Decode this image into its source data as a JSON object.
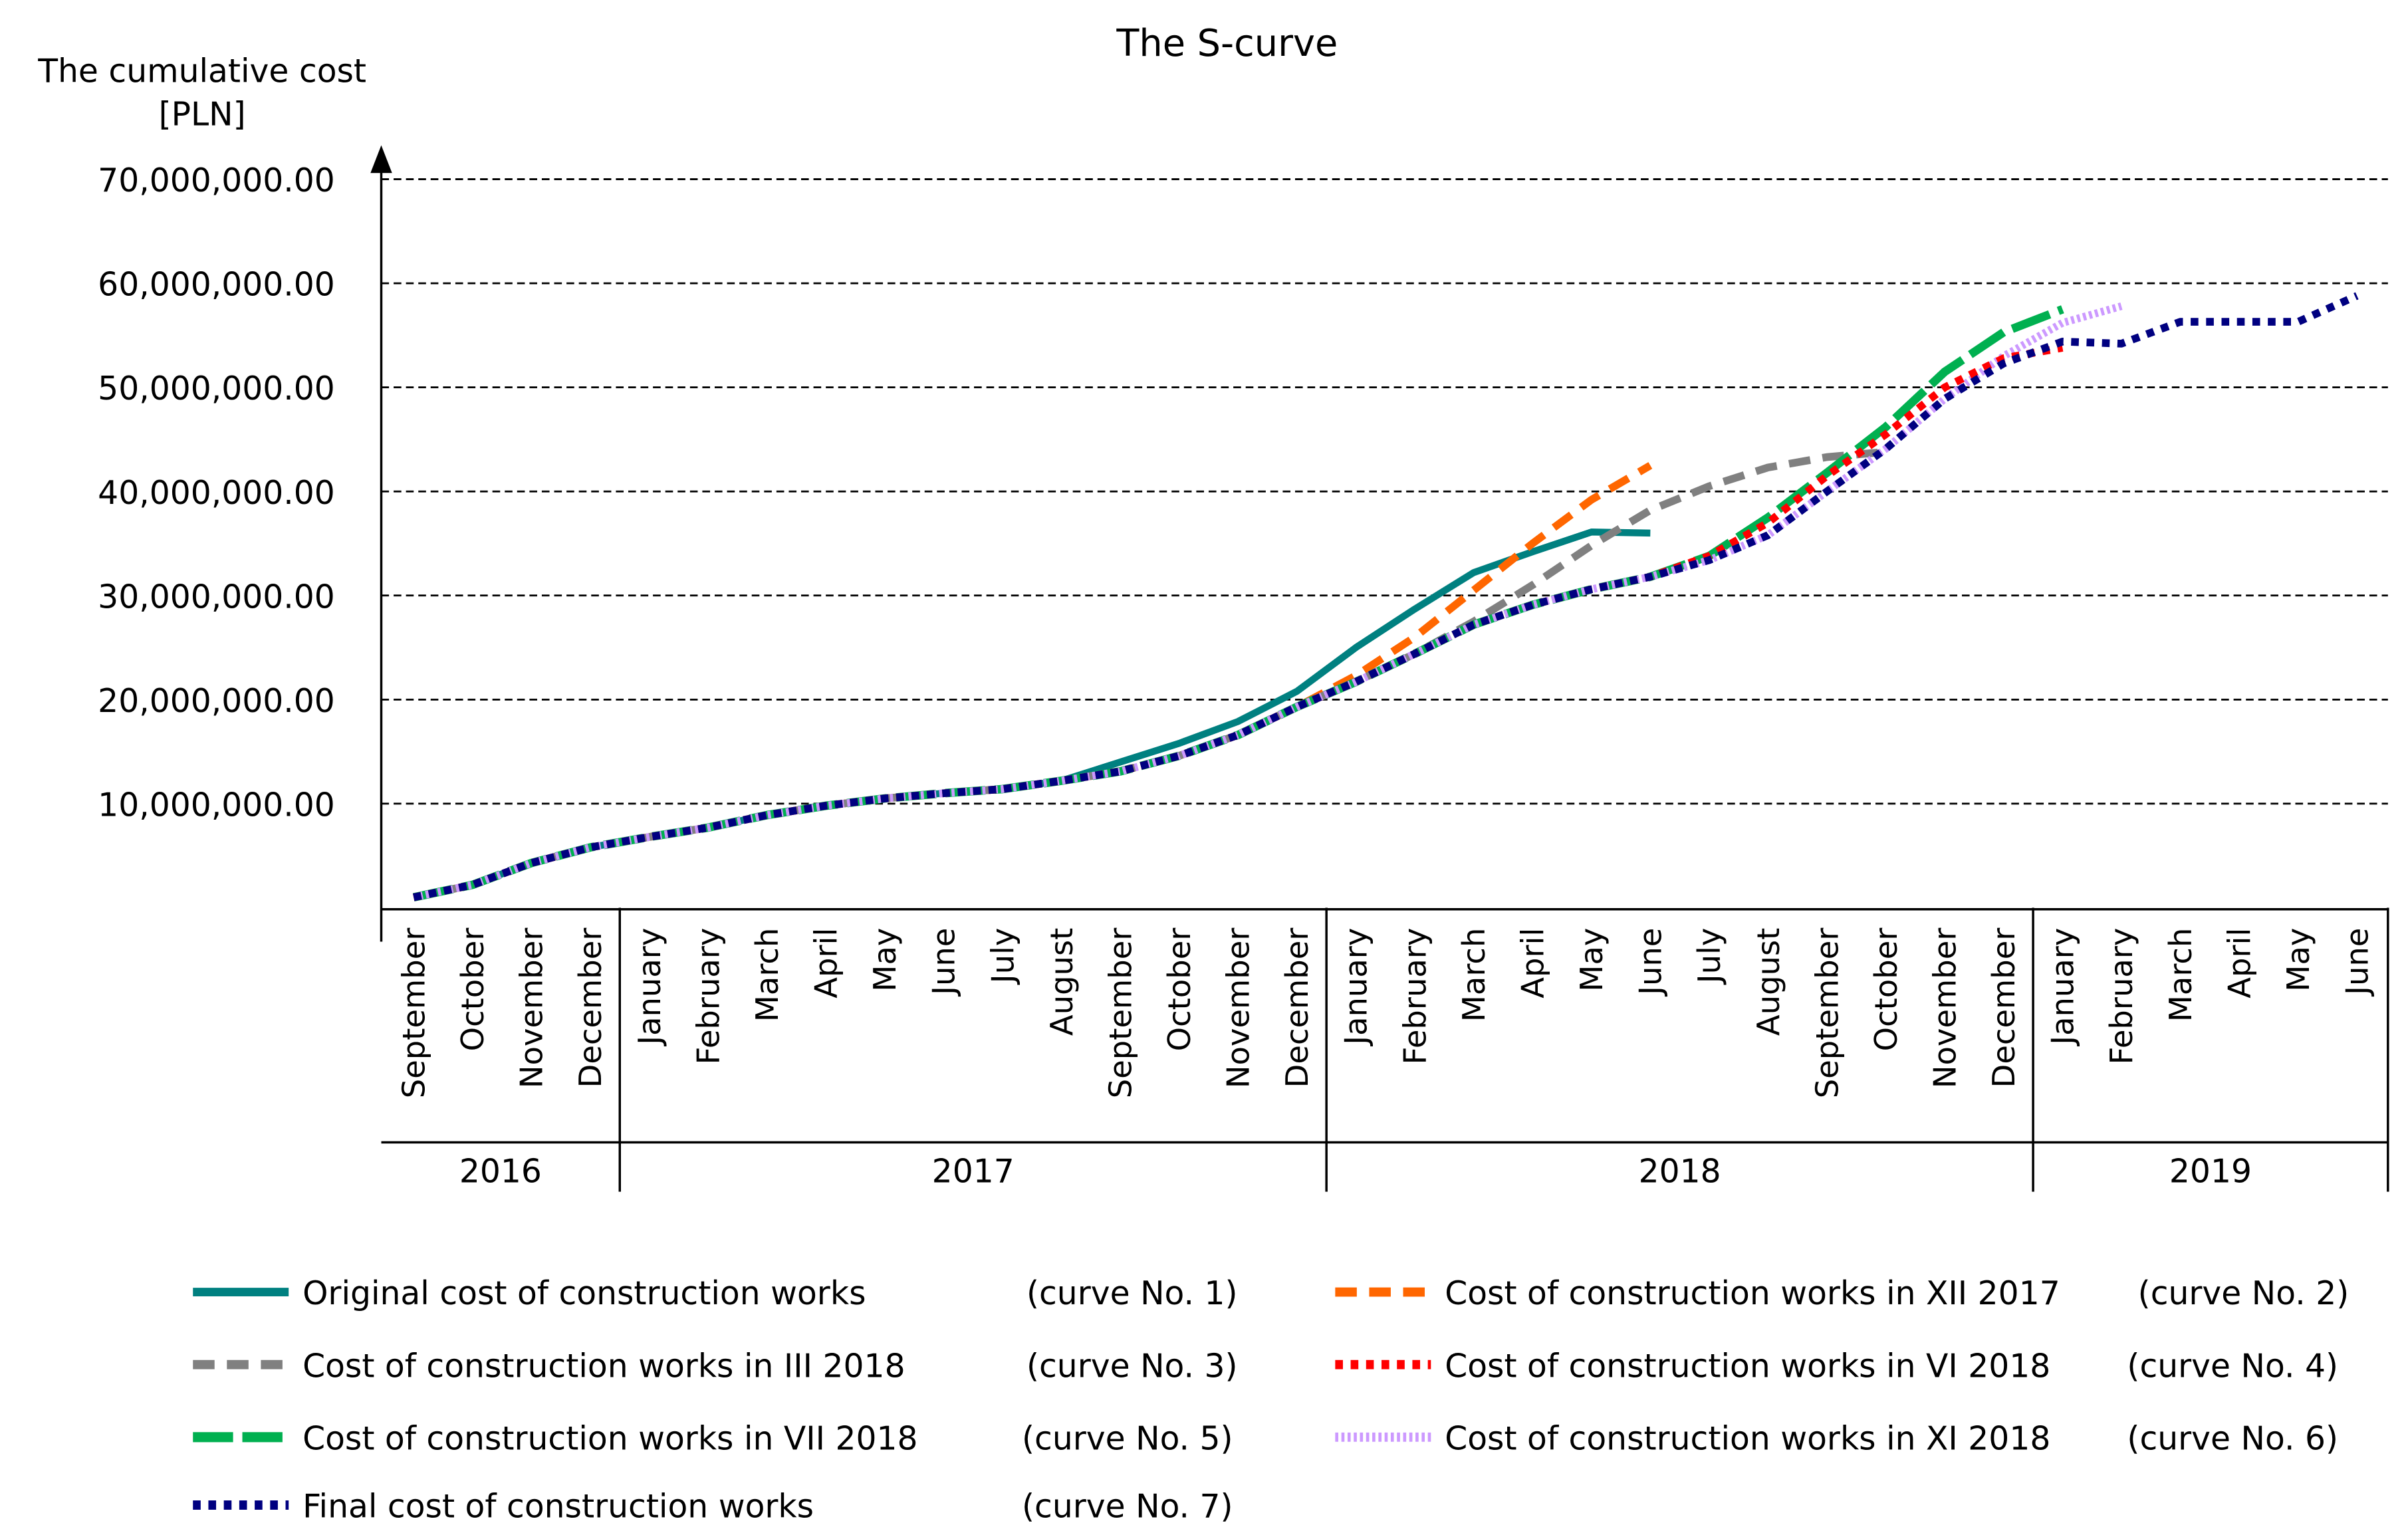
{
  "chart_data": {
    "type": "line",
    "title": "The S-curve",
    "ylabel": [
      "The cumulative cost",
      "[PLN]"
    ],
    "xlabel": "",
    "ylim": [
      0,
      70000000
    ],
    "yticks": [
      10000000,
      20000000,
      30000000,
      40000000,
      50000000,
      60000000,
      70000000
    ],
    "ytick_labels": [
      "10,000,000.00",
      "20,000,000.00",
      "30,000,000.00",
      "40,000,000.00",
      "50,000,000.00",
      "60,000,000.00",
      "70,000,000.00"
    ],
    "grid": "horizontal dashed",
    "months": [
      "September",
      "October",
      "November",
      "December",
      "January",
      "February",
      "March",
      "April",
      "May",
      "June",
      "July",
      "August",
      "September",
      "October",
      "November",
      "December",
      "January",
      "February",
      "March",
      "April",
      "May",
      "June",
      "July",
      "August",
      "September",
      "October",
      "November",
      "December",
      "January",
      "February",
      "March",
      "April",
      "May",
      "June"
    ],
    "years": [
      {
        "label": "2016",
        "from": 0,
        "to": 3
      },
      {
        "label": "2017",
        "from": 4,
        "to": 15
      },
      {
        "label": "2018",
        "from": 16,
        "to": 27
      },
      {
        "label": "2019",
        "from": 28,
        "to": 33
      }
    ],
    "legend_placement": "bottom",
    "series": [
      {
        "name": "Original cost of construction works",
        "tag": "(curve No. 1)",
        "color": "#008080",
        "dash": "solid",
        "start": 0,
        "values": [
          1.0,
          2.2,
          4.3,
          5.8,
          6.8,
          7.7,
          8.9,
          9.8,
          10.5,
          11.0,
          11.4,
          12.2,
          14.0,
          15.8,
          17.9,
          20.8,
          25.0,
          28.7,
          32.2,
          34.2,
          36.1,
          36.0
        ]
      },
      {
        "name": "Cost of construction works in XII 2017",
        "tag": "(curve No. 2)",
        "color": "#FF6600",
        "dash": "dash",
        "start": 0,
        "values": [
          1.0,
          2.2,
          4.3,
          5.8,
          6.8,
          7.7,
          8.9,
          9.8,
          10.5,
          11.0,
          11.4,
          12.2,
          13.1,
          14.6,
          16.6,
          19.3,
          22.3,
          26.0,
          30.5,
          35.0,
          39.2,
          42.5
        ]
      },
      {
        "name": "Cost of construction works in III 2018",
        "tag": "(curve No. 3)",
        "color": "#808080",
        "dash": "dash",
        "start": 0,
        "values": [
          1.0,
          2.2,
          4.3,
          5.8,
          6.8,
          7.7,
          8.9,
          9.8,
          10.5,
          11.0,
          11.4,
          12.2,
          13.1,
          14.6,
          16.6,
          19.3,
          21.7,
          24.4,
          27.5,
          31.0,
          34.8,
          38.2,
          40.5,
          42.3,
          43.3,
          43.8
        ]
      },
      {
        "name": "Cost of construction works in VI 2018",
        "tag": "(curve No. 4)",
        "color": "#FF0000",
        "dash": "dot",
        "start": 0,
        "values": [
          1.0,
          2.2,
          4.3,
          5.8,
          6.8,
          7.7,
          8.9,
          9.8,
          10.5,
          11.0,
          11.4,
          12.2,
          13.1,
          14.6,
          16.6,
          19.3,
          21.7,
          24.4,
          27.2,
          29.1,
          30.6,
          31.8,
          33.8,
          37.0,
          41.5,
          45.5,
          50.0,
          52.8,
          53.8
        ]
      },
      {
        "name": "Cost of construction works in VII 2018",
        "tag": "(curve No. 5)",
        "color": "#00B050",
        "dash": "longdash",
        "start": 0,
        "values": [
          1.0,
          2.2,
          4.3,
          5.8,
          6.8,
          7.7,
          8.9,
          9.8,
          10.5,
          11.0,
          11.4,
          12.2,
          13.1,
          14.6,
          16.6,
          19.3,
          21.7,
          24.4,
          27.2,
          29.1,
          30.6,
          31.8,
          33.8,
          37.5,
          41.8,
          46.2,
          51.5,
          55.3,
          57.5
        ]
      },
      {
        "name": "Cost of construction works in XI 2018",
        "tag": "(curve No. 6)",
        "color": "#CC99FF",
        "dash": "fine",
        "start": 0,
        "values": [
          1.0,
          2.2,
          4.3,
          5.8,
          6.8,
          7.7,
          8.9,
          9.8,
          10.5,
          11.0,
          11.4,
          12.2,
          13.1,
          14.6,
          16.6,
          19.3,
          21.7,
          24.4,
          27.2,
          29.1,
          30.6,
          31.8,
          33.4,
          35.8,
          40.0,
          44.1,
          48.9,
          53.0,
          56.2,
          57.8
        ]
      },
      {
        "name": "Final cost of construction works",
        "tag": "(curve No. 7)",
        "color": "#000080",
        "dash": "dot",
        "start": 0,
        "values": [
          1.0,
          2.2,
          4.3,
          5.8,
          6.8,
          7.7,
          8.9,
          9.8,
          10.5,
          11.0,
          11.4,
          12.2,
          13.1,
          14.6,
          16.6,
          19.3,
          21.7,
          24.4,
          27.2,
          29.1,
          30.6,
          31.8,
          33.4,
          35.8,
          40.0,
          44.1,
          48.9,
          52.3,
          54.4,
          54.2,
          56.3,
          56.3,
          56.3,
          58.8
        ]
      }
    ],
    "value_unit": "million PLN"
  }
}
